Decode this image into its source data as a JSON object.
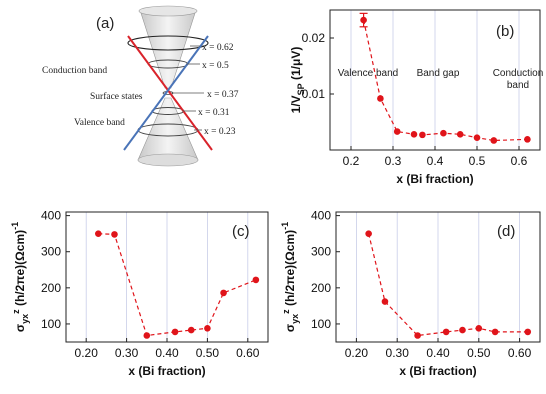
{
  "panel_a": {
    "label": "(a)",
    "x_labels": [
      "x = 0.62",
      "x = 0.5",
      "x = 0.37",
      "x = 0.31",
      "x = 0.23"
    ],
    "band_labels": [
      "Conduction band",
      "Surface states",
      "Valence band"
    ]
  },
  "chart_data": [
    {
      "type": "scatter",
      "panel_label": "(b)",
      "x": [
        0.23,
        0.27,
        0.31,
        0.35,
        0.37,
        0.42,
        0.46,
        0.5,
        0.54,
        0.62
      ],
      "y": [
        0.0232,
        0.0092,
        0.0033,
        0.0028,
        0.0027,
        0.003,
        0.0028,
        0.0022,
        0.0017,
        0.0019
      ],
      "error_bar_index": 0,
      "error": 0.0012,
      "xlabel": "x (Bi fraction)",
      "ylabel": "1/V",
      "ylabel_sub": "SP",
      "ylabel_unit": " (1/μV)",
      "xlim": [
        0.15,
        0.65
      ],
      "ylim": [
        0.0,
        0.025
      ],
      "xticks": [
        0.2,
        0.3,
        0.4,
        0.5,
        0.6
      ],
      "xtick_labels": [
        "0.2",
        "0.3",
        "0.4",
        "0.5",
        "0.6"
      ],
      "yticks": [
        0.01,
        0.02
      ],
      "ytick_labels": [
        "0.01",
        "0.02"
      ],
      "region_lines": [
        0.2,
        0.3,
        0.4,
        0.5,
        0.6
      ],
      "region_labels": [
        "Valence band",
        "Band gap",
        "Conduction\nband"
      ],
      "color": "#e0141a"
    },
    {
      "type": "scatter",
      "panel_label": "(c)",
      "x": [
        0.23,
        0.27,
        0.35,
        0.42,
        0.46,
        0.5,
        0.54,
        0.62
      ],
      "y": [
        350,
        348,
        68,
        78,
        83,
        88,
        186,
        222
      ],
      "xlabel": "x (Bi fraction)",
      "ylabel": "σ",
      "ylabel_sub": "yx",
      "ylabel_sup": "z",
      "ylabel_unit": " (h/2πe)(Ωcm)",
      "ylabel_unit_sup": "-1",
      "xlim": [
        0.15,
        0.65
      ],
      "ylim": [
        50,
        410
      ],
      "xticks": [
        0.2,
        0.3,
        0.4,
        0.5,
        0.6
      ],
      "xtick_labels": [
        "0.20",
        "0.30",
        "0.40",
        "0.50",
        "0.60"
      ],
      "yticks": [
        100,
        200,
        300,
        400
      ],
      "ytick_labels": [
        "100",
        "200",
        "300",
        "400"
      ],
      "region_lines": [
        0.2,
        0.3,
        0.4,
        0.5,
        0.6
      ],
      "color": "#e0141a"
    },
    {
      "type": "scatter",
      "panel_label": "(d)",
      "x": [
        0.23,
        0.27,
        0.35,
        0.42,
        0.46,
        0.5,
        0.54,
        0.62
      ],
      "y": [
        350,
        162,
        68,
        78,
        83,
        88,
        78,
        78
      ],
      "xlabel": "x (Bi fraction)",
      "ylabel": "σ",
      "ylabel_sub": "yx",
      "ylabel_sup": "z",
      "ylabel_unit": " (h/2πe)(Ωcm)",
      "ylabel_unit_sup": "-1",
      "xlim": [
        0.15,
        0.65
      ],
      "ylim": [
        50,
        410
      ],
      "xticks": [
        0.2,
        0.3,
        0.4,
        0.5,
        0.6
      ],
      "xtick_labels": [
        "0.20",
        "0.30",
        "0.40",
        "0.50",
        "0.60"
      ],
      "yticks": [
        100,
        200,
        300,
        400
      ],
      "ytick_labels": [
        "100",
        "200",
        "300",
        "400"
      ],
      "region_lines": [
        0.2,
        0.3,
        0.4,
        0.5,
        0.6
      ],
      "color": "#e0141a"
    }
  ]
}
